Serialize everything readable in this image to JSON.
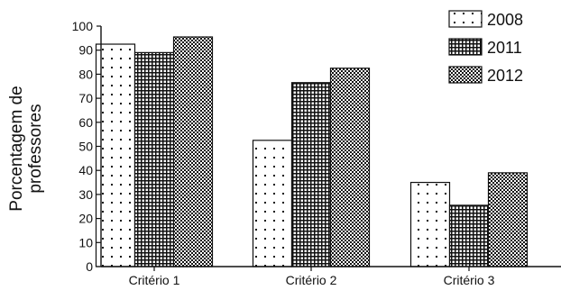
{
  "chart_data": {
    "type": "bar",
    "categories": [
      "Critério 1",
      "Critério 2",
      "Critério 3"
    ],
    "series": [
      {
        "name": "2008",
        "values": [
          92.5,
          52.5,
          35
        ],
        "pattern": "dots"
      },
      {
        "name": "2011",
        "values": [
          89,
          76.5,
          25.5
        ],
        "pattern": "grid"
      },
      {
        "name": "2012",
        "values": [
          95.5,
          82.5,
          39
        ],
        "pattern": "checker"
      }
    ],
    "ylabel": [
      "Porcentagem de",
      "professores"
    ],
    "ylim": [
      0,
      100
    ],
    "yticks": [
      0,
      10,
      20,
      30,
      40,
      50,
      60,
      70,
      80,
      90,
      100
    ],
    "grid": false,
    "legend": "top-right",
    "colors": {
      "axis": "#111111",
      "text": "#111111",
      "bar_fill": "#ffffff",
      "bar_pattern": "#111111"
    }
  }
}
